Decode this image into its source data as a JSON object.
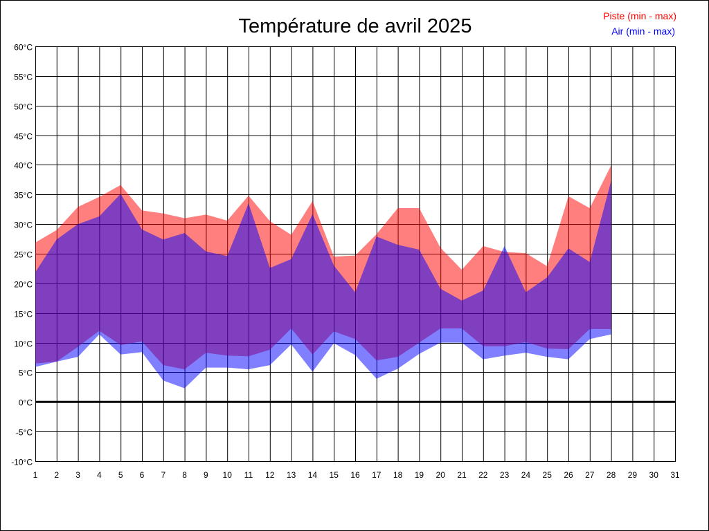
{
  "chart_data": {
    "type": "area",
    "title": "Température de avril 2025",
    "xlabel": "",
    "ylabel": "",
    "x": [
      1,
      2,
      3,
      4,
      5,
      6,
      7,
      8,
      9,
      10,
      11,
      12,
      13,
      14,
      15,
      16,
      17,
      18,
      19,
      20,
      21,
      22,
      23,
      24,
      25,
      26,
      27,
      28,
      29,
      30,
      31
    ],
    "xlim": [
      1,
      31
    ],
    "ylim": [
      -10,
      60
    ],
    "y_ticks": [
      -10,
      -5,
      0,
      5,
      10,
      15,
      20,
      25,
      30,
      35,
      40,
      45,
      50,
      55,
      60
    ],
    "y_tick_suffix": "°C",
    "grid": true,
    "legend_position": "top-right",
    "series": [
      {
        "name": "Piste (min - max)",
        "color": "#ff0000",
        "min": [
          6.5,
          6.8,
          9.3,
          12.0,
          9.6,
          10.2,
          6.2,
          5.5,
          8.3,
          7.8,
          7.7,
          8.8,
          12.4,
          8.0,
          11.9,
          10.6,
          7.0,
          7.6,
          10.0,
          12.4,
          12.4,
          9.4,
          9.4,
          10.1,
          9.0,
          8.9,
          12.3,
          12.3
        ],
        "max": [
          26.9,
          29.0,
          32.9,
          34.6,
          36.6,
          32.3,
          31.8,
          31.0,
          31.6,
          30.6,
          34.8,
          30.5,
          28.2,
          33.9,
          24.5,
          24.7,
          28.3,
          32.7,
          32.7,
          26.0,
          22.3,
          26.3,
          25.3,
          25.1,
          22.9,
          34.7,
          32.7,
          39.9
        ]
      },
      {
        "name": "Air (min - max)",
        "color": "#0000ff",
        "min": [
          5.9,
          6.8,
          7.6,
          11.4,
          8.0,
          8.4,
          3.6,
          2.3,
          5.8,
          5.8,
          5.5,
          6.2,
          9.7,
          5.1,
          9.9,
          7.9,
          3.9,
          5.6,
          8.1,
          10.0,
          10.0,
          7.2,
          7.8,
          8.3,
          7.6,
          7.2,
          10.6,
          11.4
        ],
        "max": [
          21.9,
          27.4,
          30.0,
          31.3,
          35.1,
          29.1,
          27.4,
          28.5,
          25.4,
          24.6,
          33.5,
          22.6,
          24.1,
          31.7,
          23.0,
          18.5,
          27.9,
          26.5,
          25.7,
          19.1,
          17.1,
          18.8,
          26.3,
          18.5,
          21.0,
          25.9,
          23.6,
          37.3
        ]
      }
    ]
  }
}
